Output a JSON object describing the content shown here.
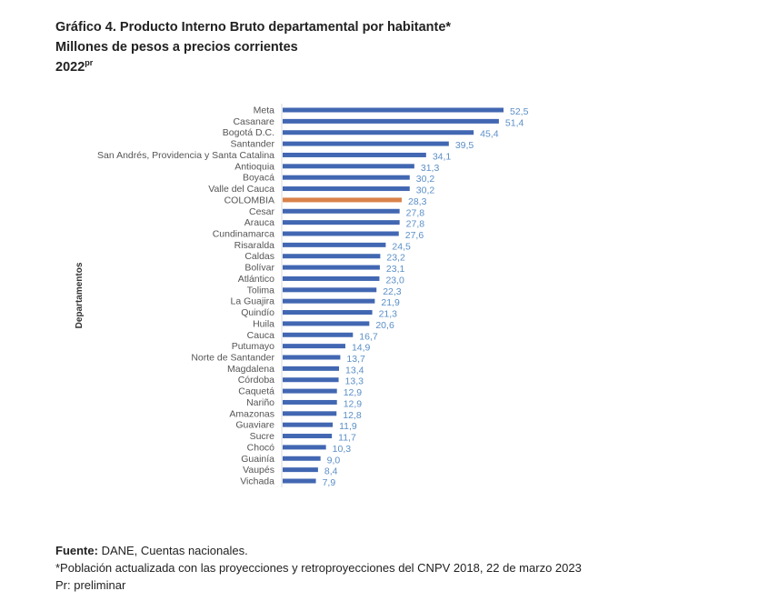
{
  "chart_data": {
    "type": "bar",
    "orientation": "horizontal",
    "title": "Gráfico 4. Producto Interno Bruto departamental por habitante*",
    "subtitle": "Millones de pesos a precios corrientes",
    "year": "2022",
    "year_sup": "pr",
    "ylabel": "Departamentos",
    "xlabel": "",
    "grid": false,
    "highlight": "COLOMBIA",
    "colors": {
      "bar": "#4267b2",
      "highlight": "#d9824a",
      "value_label": "#5b8fc7"
    },
    "categories": [
      "Meta",
      "Casanare",
      "Bogotá D.C.",
      "Santander",
      "San Andrés, Providencia y Santa Catalina",
      "Antioquia",
      "Boyacá",
      "Valle del Cauca",
      "COLOMBIA",
      "Cesar",
      "Arauca",
      "Cundinamarca",
      "Risaralda",
      "Caldas",
      "Bolívar",
      "Atlántico",
      "Tolima",
      "La Guajira",
      "Quindío",
      "Huila",
      "Cauca",
      "Putumayo",
      "Norte de Santander",
      "Magdalena",
      "Córdoba",
      "Caquetá",
      "Nariño",
      "Amazonas",
      "Guaviare",
      "Sucre",
      "Chocó",
      "Guainía",
      "Vaupés",
      "Vichada"
    ],
    "values": [
      52.5,
      51.4,
      45.4,
      39.5,
      34.1,
      31.3,
      30.2,
      30.2,
      28.3,
      27.8,
      27.8,
      27.6,
      24.5,
      23.2,
      23.1,
      23.0,
      22.3,
      21.9,
      21.3,
      20.6,
      16.7,
      14.9,
      13.7,
      13.4,
      13.3,
      12.9,
      12.9,
      12.8,
      11.9,
      11.7,
      10.3,
      9.0,
      8.4,
      7.9
    ],
    "xlim": [
      0,
      55
    ]
  },
  "footer": {
    "source_label": "Fuente:",
    "source_text": " DANE, Cuentas nacionales.",
    "note": "*Población actualizada con las proyecciones y retroproyecciones del CNPV 2018, 22 de marzo 2023",
    "pr_note": "Pr: preliminar"
  }
}
